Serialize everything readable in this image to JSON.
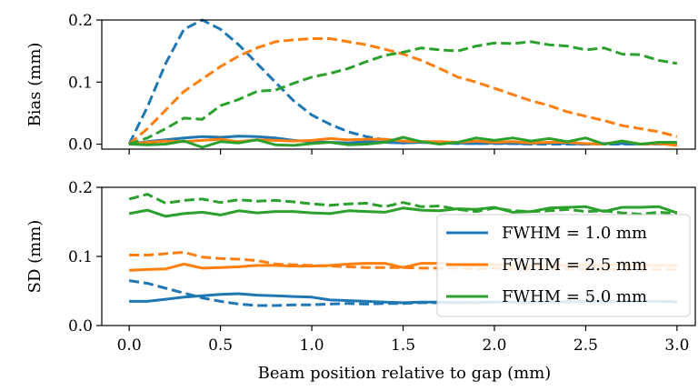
{
  "chart_data": {
    "type": "line",
    "xlabel": "Beam position relative to gap (mm)",
    "xlim": [
      -0.15,
      3.1
    ],
    "xticks": [
      "0.0",
      "0.5",
      "1.0",
      "1.5",
      "2.0",
      "2.5",
      "3.0"
    ],
    "xtick_values": [
      0,
      0.5,
      1.0,
      1.5,
      2.0,
      2.5,
      3.0
    ],
    "legend": {
      "placement": "lower-right of bottom panel",
      "entries": [
        "FWHM = 1.0 mm",
        "FWHM = 2.5 mm",
        "FWHM = 5.0 mm"
      ]
    },
    "colors": [
      "#1f77b4",
      "#ff7f0e",
      "#2ca02c"
    ],
    "x": [
      0,
      0.1,
      0.2,
      0.3,
      0.4,
      0.5,
      0.6,
      0.7,
      0.8,
      0.9,
      1.0,
      1.1,
      1.2,
      1.3,
      1.4,
      1.5,
      1.6,
      1.7,
      1.8,
      1.9,
      2.0,
      2.1,
      2.2,
      2.3,
      2.4,
      2.5,
      2.6,
      2.7,
      2.8,
      2.9,
      3.0
    ],
    "panels": [
      {
        "ylabel": "Bias (mm)",
        "ylim": [
          -0.008,
          0.2
        ],
        "yticks": [
          "0.0",
          "0.1",
          "0.2"
        ],
        "ytick_values": [
          0,
          0.1,
          0.2
        ],
        "series": [
          {
            "name": "FWHM = 1.0 mm",
            "style": "dashed",
            "values": [
              0.0,
              0.06,
              0.13,
              0.185,
              0.2,
              0.185,
              0.16,
              0.13,
              0.1,
              0.07,
              0.047,
              0.032,
              0.02,
              0.012,
              0.007,
              0.004,
              0.003,
              0.002,
              0.001,
              0.001,
              0.001,
              0.001,
              0.0,
              0.0,
              0.0,
              0.0,
              0.0,
              0.0,
              0.0,
              0.0,
              0.0
            ]
          },
          {
            "name": "FWHM = 1.0 mm",
            "style": "solid",
            "values": [
              0.0,
              0.004,
              0.007,
              0.01,
              0.012,
              0.011,
              0.013,
              0.012,
              0.01,
              0.006,
              0.004,
              0.003,
              0.002,
              0.004,
              0.003,
              0.002,
              0.003,
              0.002,
              0.002,
              0.001,
              0.002,
              0.001,
              0.001,
              0.002,
              0.001,
              0.0,
              0.001,
              0.001,
              0.0,
              0.001,
              0.0
            ]
          },
          {
            "name": "FWHM = 2.5 mm",
            "style": "dashed",
            "values": [
              0.0,
              0.025,
              0.055,
              0.085,
              0.105,
              0.125,
              0.142,
              0.155,
              0.165,
              0.168,
              0.17,
              0.17,
              0.165,
              0.16,
              0.153,
              0.145,
              0.135,
              0.122,
              0.108,
              0.1,
              0.09,
              0.08,
              0.07,
              0.062,
              0.052,
              0.045,
              0.038,
              0.03,
              0.025,
              0.02,
              0.012
            ]
          },
          {
            "name": "FWHM = 2.5 mm",
            "style": "solid",
            "values": [
              0.0,
              0.003,
              0.005,
              0.004,
              0.006,
              0.008,
              0.004,
              0.007,
              0.006,
              0.005,
              0.006,
              0.009,
              0.007,
              0.008,
              0.008,
              0.005,
              0.004,
              0.004,
              0.003,
              0.005,
              0.003,
              0.004,
              0.002,
              0.003,
              0.003,
              0.001,
              0.0,
              0.005,
              0.0,
              0.001,
              -0.002
            ]
          },
          {
            "name": "FWHM = 5.0 mm",
            "style": "dashed",
            "values": [
              0.0,
              0.01,
              0.025,
              0.042,
              0.04,
              0.062,
              0.072,
              0.085,
              0.087,
              0.098,
              0.108,
              0.114,
              0.122,
              0.133,
              0.143,
              0.148,
              0.155,
              0.152,
              0.15,
              0.158,
              0.163,
              0.162,
              0.165,
              0.16,
              0.158,
              0.152,
              0.155,
              0.145,
              0.144,
              0.135,
              0.13
            ]
          },
          {
            "name": "FWHM = 5.0 mm",
            "style": "solid",
            "values": [
              0.0,
              -0.001,
              0.0,
              0.005,
              -0.005,
              0.004,
              0.002,
              0.007,
              -0.001,
              -0.002,
              0.001,
              0.003,
              -0.001,
              0.0,
              0.003,
              0.011,
              0.004,
              0.0,
              0.003,
              0.01,
              0.006,
              0.01,
              0.005,
              0.009,
              0.004,
              0.01,
              0.0,
              0.005,
              0.0,
              0.003,
              0.003
            ]
          }
        ]
      },
      {
        "ylabel": "SD (mm)",
        "ylim": [
          0,
          0.2
        ],
        "yticks": [
          "0.0",
          "0.1",
          "0.2"
        ],
        "ytick_values": [
          0,
          0.1,
          0.2
        ],
        "series": [
          {
            "name": "FWHM = 1.0 mm",
            "style": "dashed",
            "values": [
              0.065,
              0.061,
              0.054,
              0.047,
              0.04,
              0.035,
              0.031,
              0.029,
              0.029,
              0.03,
              0.03,
              0.031,
              0.032,
              0.031,
              0.032,
              0.032,
              0.033,
              0.033,
              0.033,
              0.034,
              0.034,
              0.034,
              0.034,
              0.034,
              0.035,
              0.035,
              0.035,
              0.035,
              0.035,
              0.035,
              0.035
            ]
          },
          {
            "name": "FWHM = 1.0 mm",
            "style": "solid",
            "values": [
              0.035,
              0.035,
              0.038,
              0.041,
              0.043,
              0.045,
              0.046,
              0.044,
              0.043,
              0.042,
              0.041,
              0.037,
              0.036,
              0.035,
              0.034,
              0.033,
              0.034,
              0.034,
              0.033,
              0.033,
              0.034,
              0.034,
              0.033,
              0.034,
              0.034,
              0.035,
              0.034,
              0.035,
              0.035,
              0.035,
              0.034
            ]
          },
          {
            "name": "FWHM = 2.5 mm",
            "style": "dashed",
            "values": [
              0.102,
              0.102,
              0.104,
              0.106,
              0.099,
              0.097,
              0.096,
              0.094,
              0.089,
              0.088,
              0.087,
              0.086,
              0.085,
              0.084,
              0.084,
              0.084,
              0.083,
              0.083,
              0.083,
              0.082,
              0.083,
              0.082,
              0.082,
              0.082,
              0.082,
              0.082,
              0.081,
              0.081,
              0.081,
              0.081,
              0.081
            ]
          },
          {
            "name": "FWHM = 2.5 mm",
            "style": "solid",
            "values": [
              0.08,
              0.081,
              0.082,
              0.089,
              0.083,
              0.084,
              0.085,
              0.087,
              0.087,
              0.086,
              0.086,
              0.087,
              0.089,
              0.09,
              0.09,
              0.084,
              0.09,
              0.09,
              0.088,
              0.087,
              0.088,
              0.088,
              0.087,
              0.088,
              0.087,
              0.088,
              0.087,
              0.088,
              0.087,
              0.087,
              0.087
            ]
          },
          {
            "name": "FWHM = 5.0 mm",
            "style": "dashed",
            "values": [
              0.183,
              0.19,
              0.177,
              0.181,
              0.183,
              0.178,
              0.182,
              0.18,
              0.181,
              0.179,
              0.176,
              0.174,
              0.176,
              0.177,
              0.172,
              0.178,
              0.172,
              0.173,
              0.168,
              0.165,
              0.17,
              0.166,
              0.165,
              0.166,
              0.168,
              0.165,
              0.166,
              0.163,
              0.161,
              0.164,
              0.162
            ]
          },
          {
            "name": "FWHM = 5.0 mm",
            "style": "solid",
            "values": [
              0.162,
              0.167,
              0.158,
              0.162,
              0.164,
              0.16,
              0.166,
              0.163,
              0.165,
              0.165,
              0.163,
              0.162,
              0.166,
              0.165,
              0.164,
              0.17,
              0.167,
              0.166,
              0.169,
              0.168,
              0.171,
              0.164,
              0.165,
              0.17,
              0.171,
              0.172,
              0.165,
              0.171,
              0.171,
              0.172,
              0.163
            ]
          }
        ]
      }
    ]
  }
}
